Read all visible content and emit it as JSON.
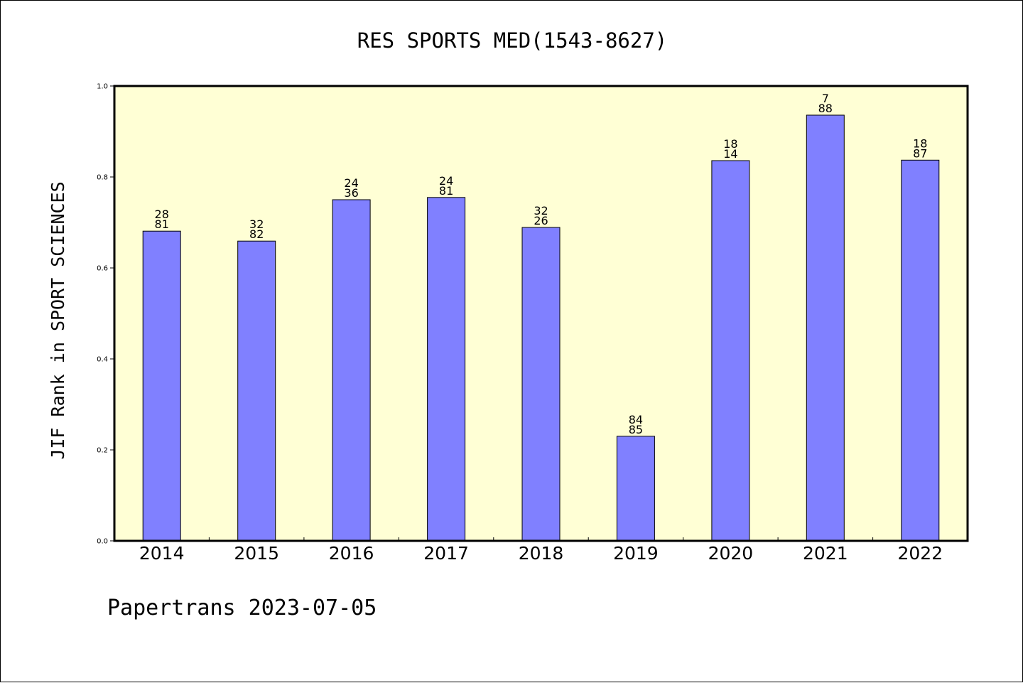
{
  "title": "RES SPORTS MED(1543-8627)",
  "footer": "Papertrans 2023-07-05",
  "colors": {
    "plot_background": "#ffffd5",
    "bar_fill": "#8080ff",
    "bar_stroke": "#000000",
    "axis": "#000000"
  },
  "chart_data": {
    "type": "bar",
    "title": "RES SPORTS MED(1543-8627)",
    "xlabel": "",
    "ylabel": "JIF Rank in SPORT SCIENCES",
    "categories": [
      "2014",
      "2015",
      "2016",
      "2017",
      "2018",
      "2019",
      "2020",
      "2021",
      "2022"
    ],
    "values": [
      0.681,
      0.659,
      0.75,
      0.755,
      0.689,
      0.23,
      0.836,
      0.936,
      0.837
    ],
    "bar_labels": [
      [
        "28",
        "81"
      ],
      [
        "32",
        "82"
      ],
      [
        "24",
        "36"
      ],
      [
        "24",
        "81"
      ],
      [
        "32",
        "26"
      ],
      [
        "84",
        "85"
      ],
      [
        "18",
        "14"
      ],
      [
        "7",
        "88"
      ],
      [
        "18",
        "87"
      ]
    ],
    "ylim": [
      0,
      1.0
    ],
    "yticks": [
      "0.0",
      "0.2",
      "0.4",
      "0.6",
      "0.8",
      "1.0"
    ],
    "grid": false,
    "legend": "none"
  }
}
